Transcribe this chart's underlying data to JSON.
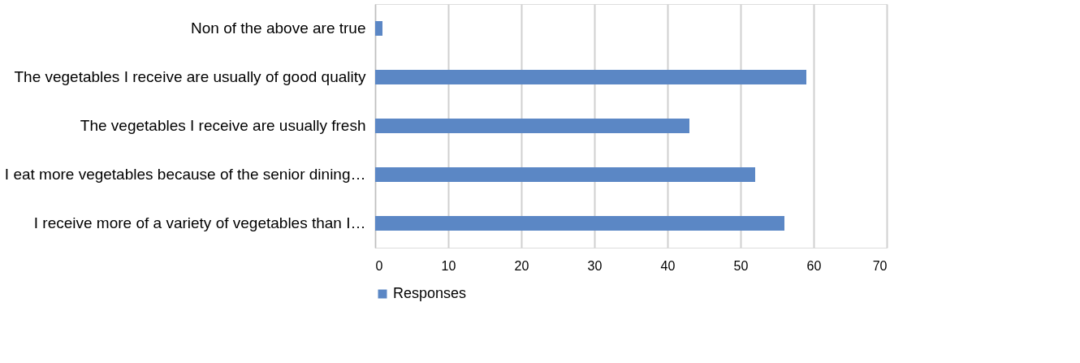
{
  "chart_data": {
    "type": "bar",
    "orientation": "horizontal",
    "categories": [
      "Non of the above are true",
      "The vegetables I receive are usually of good quality",
      "The vegetables I receive are usually fresh",
      "I eat more vegetables because of the senior dining…",
      "I receive more of a variety of vegetables than I…"
    ],
    "series": [
      {
        "name": "Responses",
        "color": "#5b87c5",
        "values": [
          1,
          59,
          43,
          52,
          56
        ]
      }
    ],
    "xlim": [
      0,
      70
    ],
    "xticks": [
      0,
      10,
      20,
      30,
      40,
      50,
      60,
      70
    ],
    "grid": "x",
    "legend": "bottom"
  }
}
